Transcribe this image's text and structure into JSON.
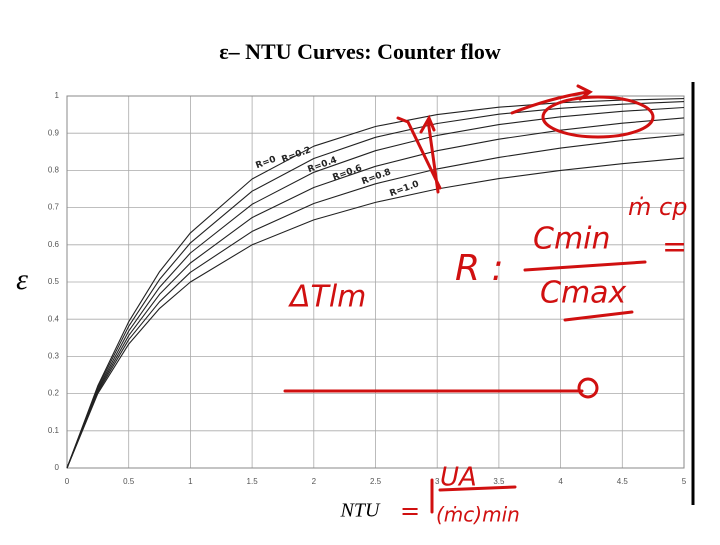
{
  "chart_data": {
    "type": "line",
    "title": "ε– NTU Curves: Counter flow",
    "x_label": "NTU",
    "y_label": "ε",
    "x": [
      0,
      0.25,
      0.5,
      0.75,
      1,
      1.5,
      2,
      2.5,
      3,
      3.5,
      4,
      4.5,
      5
    ],
    "series": [
      {
        "name": "R=0",
        "color": "#222222",
        "values": [
          0,
          0.221,
          0.393,
          0.528,
          0.632,
          0.777,
          0.865,
          0.918,
          0.95,
          0.97,
          0.982,
          0.989,
          0.993
        ]
      },
      {
        "name": "R=0.2",
        "color": "#222222",
        "values": [
          0,
          0.217,
          0.381,
          0.507,
          0.605,
          0.744,
          0.832,
          0.889,
          0.926,
          0.951,
          0.967,
          0.978,
          0.985
        ]
      },
      {
        "name": "R=0.4",
        "color": "#222222",
        "values": [
          0,
          0.212,
          0.368,
          0.486,
          0.578,
          0.709,
          0.795,
          0.853,
          0.894,
          0.923,
          0.944,
          0.959,
          0.969
        ]
      },
      {
        "name": "R=0.6",
        "color": "#222222",
        "values": [
          0,
          0.208,
          0.356,
          0.467,
          0.551,
          0.673,
          0.754,
          0.811,
          0.853,
          0.884,
          0.908,
          0.927,
          0.941
        ]
      },
      {
        "name": "R=0.8",
        "color": "#222222",
        "values": [
          0,
          0.204,
          0.345,
          0.447,
          0.526,
          0.636,
          0.711,
          0.764,
          0.804,
          0.835,
          0.86,
          0.88,
          0.896
        ]
      },
      {
        "name": "R=1.0",
        "color": "#222222",
        "values": [
          0,
          0.2,
          0.333,
          0.429,
          0.5,
          0.6,
          0.667,
          0.714,
          0.75,
          0.778,
          0.8,
          0.818,
          0.833
        ]
      }
    ],
    "xlim": [
      0,
      5
    ],
    "xticks": [
      0,
      0.5,
      1,
      1.5,
      2,
      2.5,
      3,
      3.5,
      4,
      4.5,
      5
    ],
    "ylim": [
      0,
      1
    ],
    "yticks": [
      0,
      0.1,
      0.2,
      0.3,
      0.4,
      0.5,
      0.6,
      0.7,
      0.8,
      0.9,
      1
    ],
    "grid": true,
    "annotations": [
      "ΔTlm",
      "R :",
      "Cmin",
      "Cmax",
      "ṁ cp",
      "=",
      "UA",
      "(ṁc)min",
      "="
    ]
  }
}
